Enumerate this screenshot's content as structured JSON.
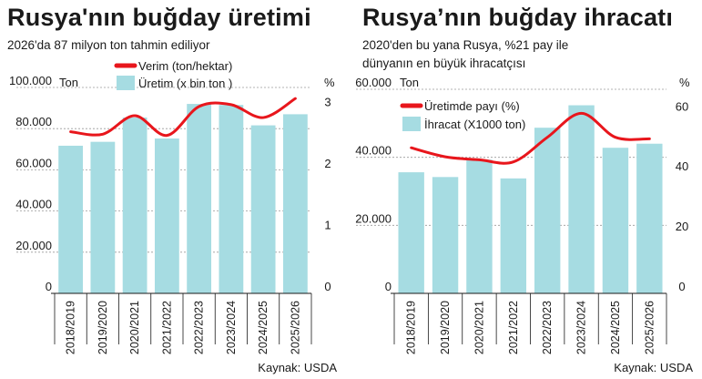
{
  "chart_data": [
    {
      "type": "bar",
      "title": "Rusya'nın buğday üretimi",
      "subtitle": [
        "2026'da 87 milyon ton tahmin ediliyor"
      ],
      "categories": [
        "2018/2019",
        "2019/2020",
        "2020/2021",
        "2021/2022",
        "2022/2023",
        "2023/2024",
        "2024/2025",
        "2025/2026"
      ],
      "y_left": {
        "unit": "Ton",
        "min": 0,
        "max": 100000,
        "ticks": [
          "0",
          "20.000",
          "40.000",
          "60.000",
          "80.000",
          "100.000"
        ]
      },
      "y_right": {
        "unit": "%",
        "min": 0,
        "max": 3.35,
        "ticks": [
          "0",
          "1",
          "2",
          "3"
        ]
      },
      "series": [
        {
          "name": "Üretim (x bin ton )",
          "kind": "bar",
          "axis": "left",
          "color": "#a6dce2",
          "values": [
            71700,
            73600,
            85400,
            75200,
            92000,
            91500,
            81600,
            87000
          ]
        },
        {
          "name": "Verim (ton/hektar)",
          "kind": "line",
          "axis": "right",
          "color": "#e8161c",
          "values": [
            2.63,
            2.59,
            2.89,
            2.57,
            3.04,
            3.07,
            2.86,
            3.17
          ]
        }
      ],
      "source": "Kaynak: USDA"
    },
    {
      "type": "bar",
      "title": "Rusya’nın buğday ihracatı",
      "subtitle": [
        "2020'den bu yana Rusya, %21 pay ile",
        "dünyanın en büyük ihracatçısı"
      ],
      "categories": [
        "2018/2019",
        "2019/2020",
        "2020/2021",
        "2021/2022",
        "2022/2023",
        "2023/2024",
        "2024/2025",
        "2025/2026"
      ],
      "y_left": {
        "unit": "Ton",
        "min": 0,
        "max": 60000,
        "ticks": [
          "0",
          "20.000",
          "40.000",
          "60.000"
        ]
      },
      "y_right": {
        "unit": "%",
        "min": 0,
        "max": 68,
        "ticks": [
          "0",
          "20",
          "40",
          "60"
        ]
      },
      "series": [
        {
          "name": "Üretimde payı (%)",
          "kind": "line",
          "axis": "right",
          "color": "#e8161c",
          "values": [
            48.5,
            45.5,
            44.5,
            43.8,
            52,
            60,
            52,
            51.5
          ]
        },
        {
          "name": "İhracat (X1000 ton)",
          "kind": "bar",
          "axis": "left",
          "color": "#a6dce2",
          "values": [
            35600,
            34200,
            39300,
            33800,
            48700,
            55300,
            42800,
            44000
          ]
        }
      ],
      "source": "Kaynak: USDA"
    }
  ]
}
